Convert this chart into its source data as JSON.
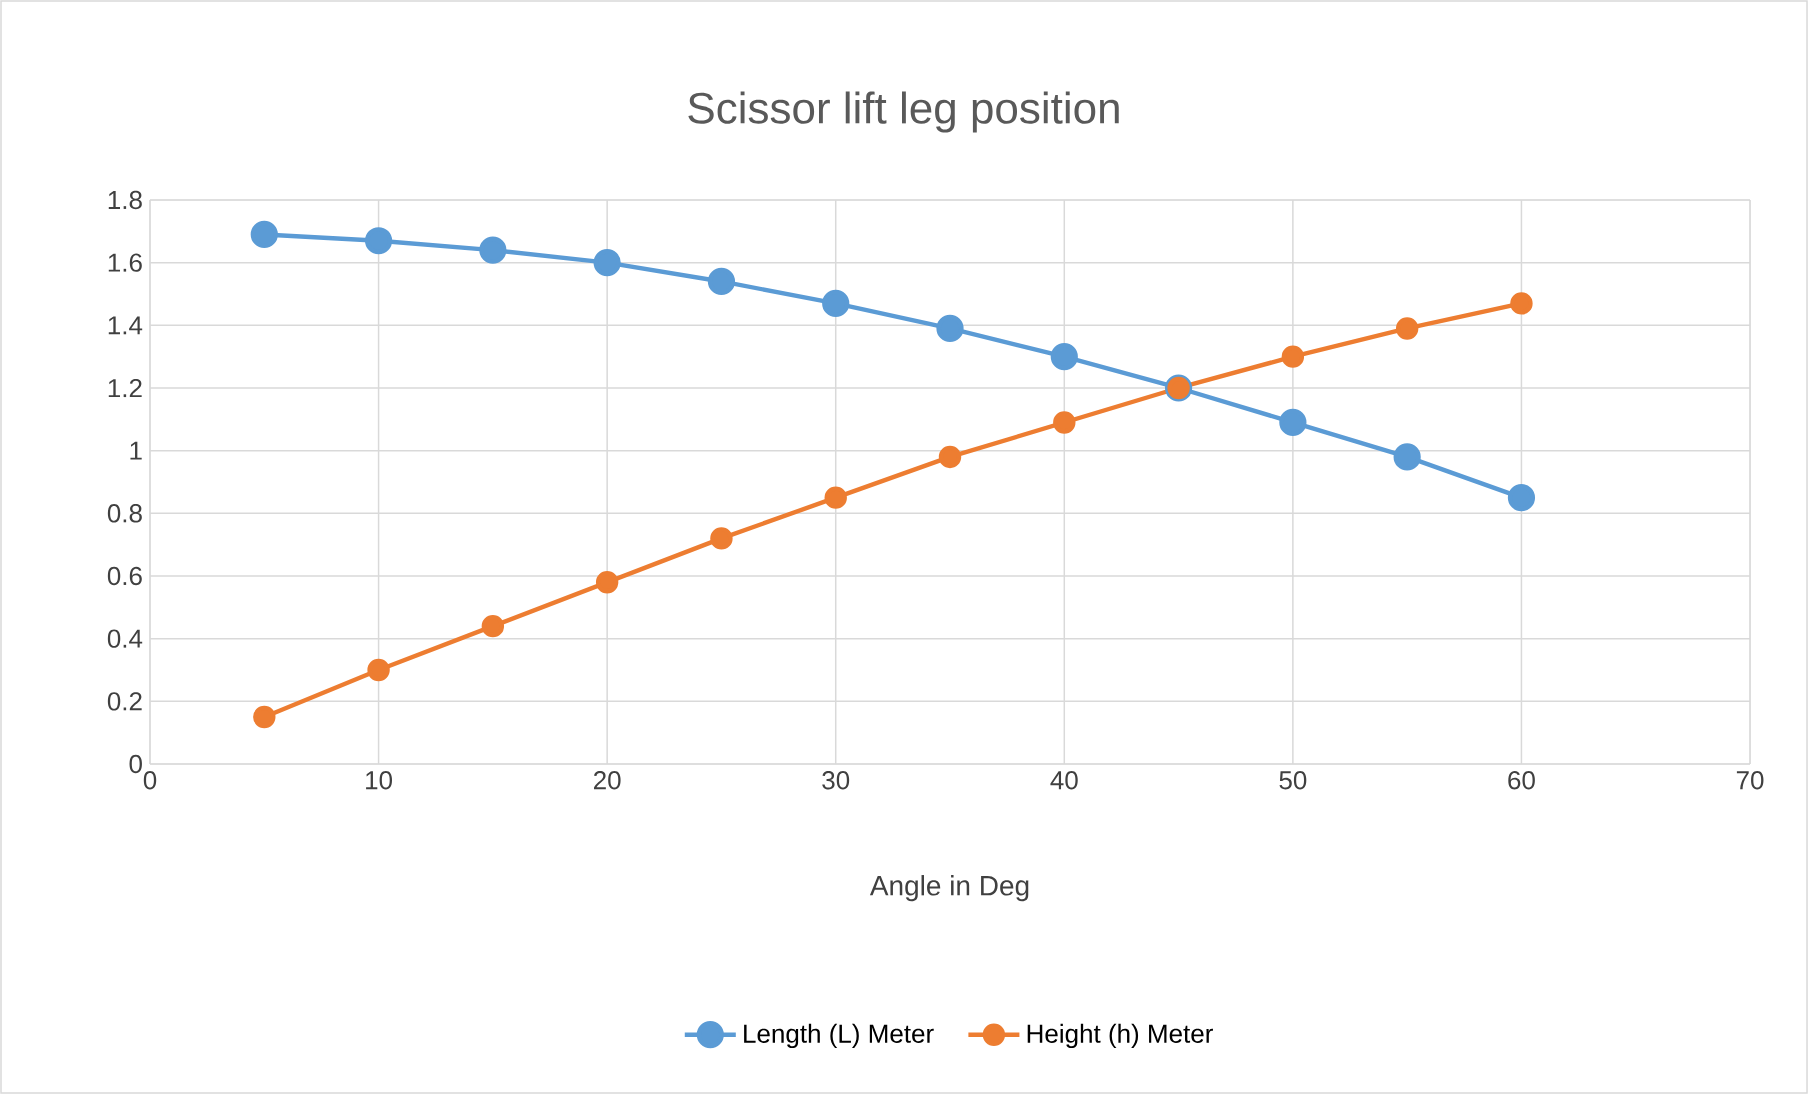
{
  "chart_data": {
    "type": "line",
    "title": "Scissor lift leg position",
    "xlabel": "Angle in Deg",
    "x": [
      5,
      10,
      15,
      20,
      25,
      30,
      35,
      40,
      45,
      50,
      55,
      60
    ],
    "series": [
      {
        "name": "Length (L) Meter",
        "color": "#5b9bd5",
        "values": [
          1.69,
          1.67,
          1.64,
          1.6,
          1.54,
          1.47,
          1.39,
          1.3,
          1.2,
          1.09,
          0.98,
          0.85
        ]
      },
      {
        "name": "Height (h) Meter",
        "color": "#ed7d31",
        "values": [
          0.15,
          0.3,
          0.44,
          0.58,
          0.72,
          0.85,
          0.98,
          1.09,
          1.2,
          1.3,
          1.39,
          1.47
        ]
      }
    ],
    "xlim": [
      0,
      70
    ],
    "xticks": [
      0,
      10,
      20,
      30,
      40,
      50,
      60,
      70
    ],
    "ylim": [
      0,
      1.8
    ],
    "yticks": [
      0,
      0.2,
      0.4,
      0.6,
      0.8,
      1,
      1.2,
      1.4,
      1.6,
      1.8
    ],
    "grid": true,
    "legend": "bottom",
    "marker": "circle",
    "line_style": "solid"
  }
}
